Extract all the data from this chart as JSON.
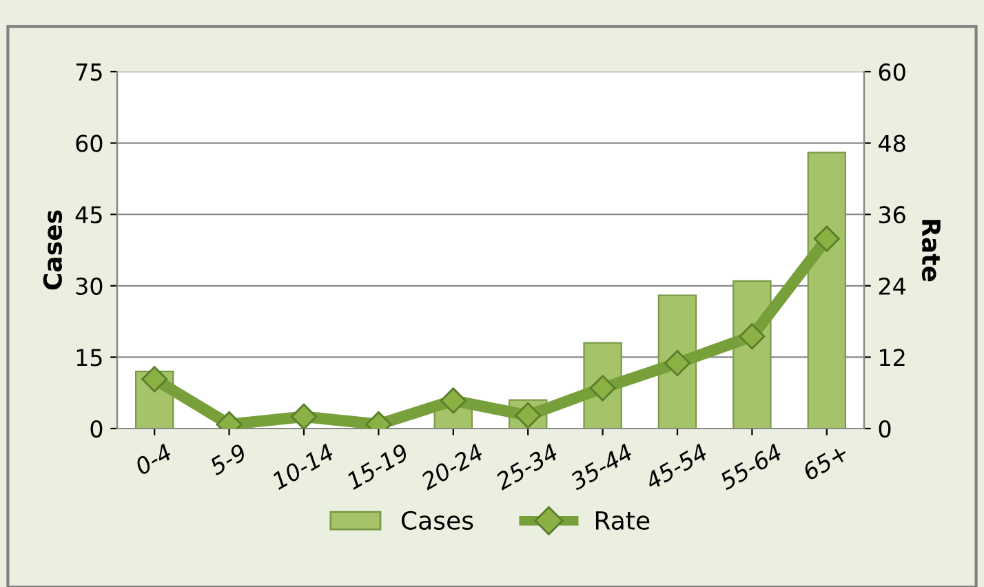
{
  "chart_data": {
    "type": "bar",
    "ylabel": "Cases",
    "y2label": "Rate",
    "categories": [
      "0-4",
      "5-9",
      "10-14",
      "15-19",
      "20-24",
      "25-34",
      "35-44",
      "45-54",
      "55-64",
      "65+"
    ],
    "series": [
      {
        "name": "Cases",
        "color": "#a5c46a",
        "values": [
          12,
          null,
          null,
          null,
          5,
          6,
          18,
          28,
          31,
          58
        ]
      },
      {
        "name": "Rate",
        "type": "line",
        "axis": "y2",
        "color": "#77a03a",
        "marker": "diamond",
        "values": [
          8.3,
          0.7,
          2.0,
          0.7,
          4.7,
          2.2,
          6.8,
          11.0,
          15.5,
          31.9
        ]
      }
    ],
    "ylim": [
      0,
      75
    ],
    "yticks": [
      0,
      15,
      30,
      45,
      60,
      75
    ],
    "y2lim": [
      0,
      60
    ],
    "y2ticks": [
      0,
      12,
      24,
      36,
      48,
      60
    ],
    "grid": "y",
    "legend": "bottom"
  }
}
